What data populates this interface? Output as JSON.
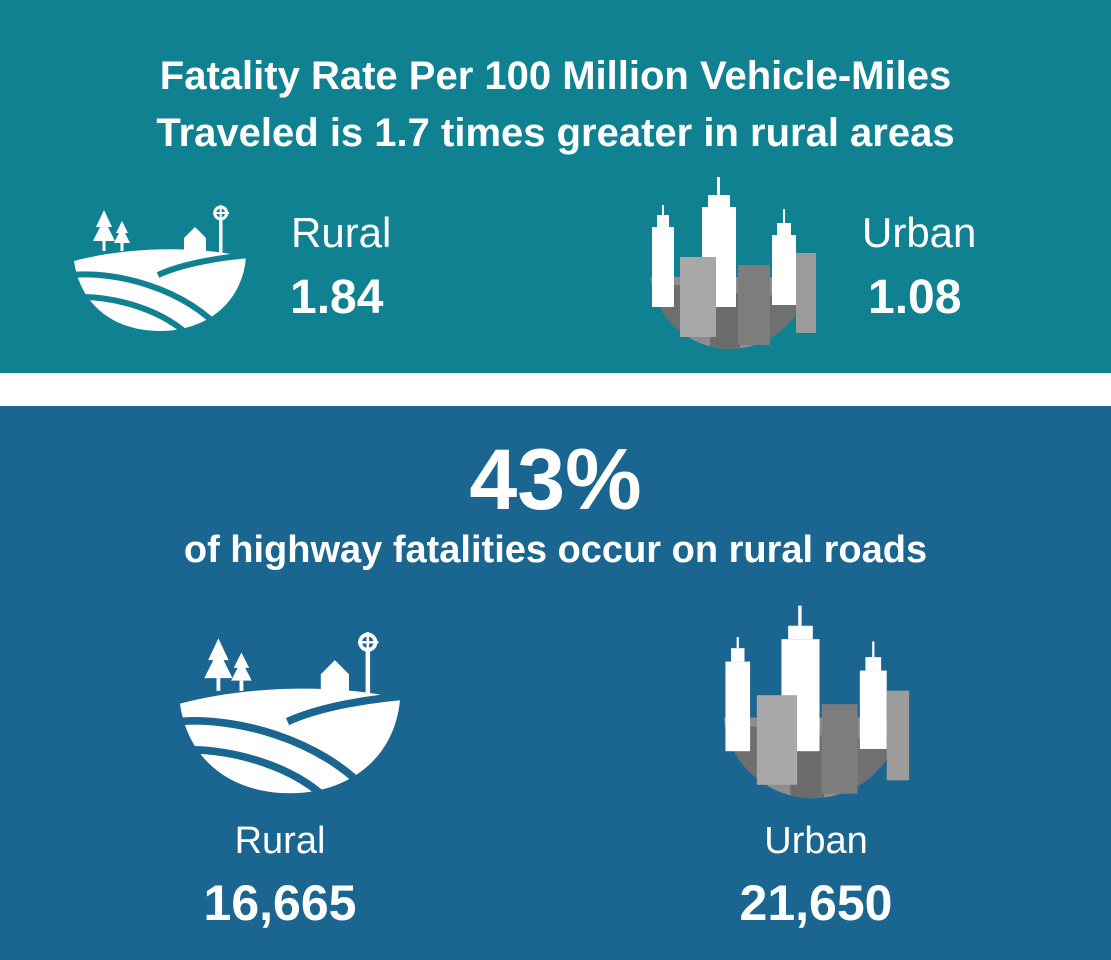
{
  "rate_section": {
    "title_line1": "Fatality Rate Per 100 Million Vehicle-Miles",
    "title_line2": "Traveled is 1.7 times greater in rural areas",
    "rural": {
      "label": "Rural",
      "value": "1.84",
      "icon": "farm-icon"
    },
    "urban": {
      "label": "Urban",
      "value": "1.08",
      "icon": "city-icon"
    }
  },
  "share_section": {
    "percent": "43%",
    "caption": "of highway fatalities occur on rural roads",
    "rural": {
      "label": "Rural",
      "value": "16,665",
      "icon": "farm-icon"
    },
    "urban": {
      "label": "Urban",
      "value": "21,650",
      "icon": "city-icon"
    }
  },
  "colors": {
    "top_panel": "#0f8191",
    "bottom_panel": "#1b6591",
    "text": "#ffffff",
    "city_gray": "#8d8d8d"
  }
}
